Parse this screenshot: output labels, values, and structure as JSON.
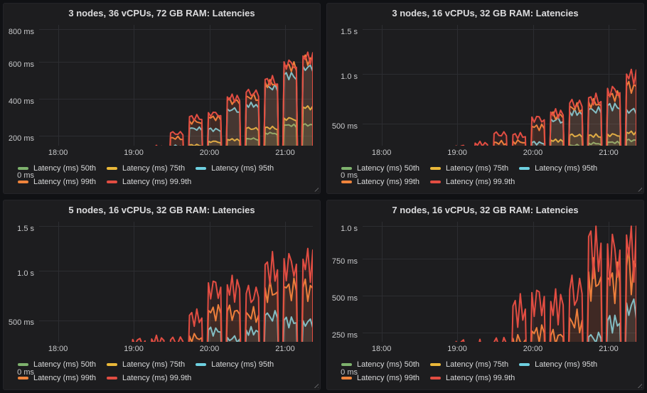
{
  "theme": {
    "page_bg": "#101114",
    "panel_bg": "#1d1d1f",
    "grid_color": "#2c2d31",
    "title_color": "#dcdcde",
    "axis_text_color": "#c8c9cb",
    "legend_text_color": "#d8d9da"
  },
  "legend": {
    "position": "bottom-left",
    "items": [
      {
        "label": "Latency (ms) 50th",
        "color": "#7EB26D"
      },
      {
        "label": "Latency (ms) 75th",
        "color": "#EAB839"
      },
      {
        "label": "Latency (ms) 95th",
        "color": "#6ED0E0"
      },
      {
        "label": "Latency (ms) 99th",
        "color": "#EF843C"
      },
      {
        "label": "Latency (ms) 99.9th",
        "color": "#E24D42"
      }
    ]
  },
  "chart_data": [
    {
      "type": "area",
      "title": "3 nodes, 36 vCPUs, 72 GB RAM: Latencies",
      "xlabel": "",
      "ylabel": "",
      "y_unit": "ms",
      "y_max": 800,
      "y_ticks": [
        {
          "v": 0,
          "label": "0 ms"
        },
        {
          "v": 200,
          "label": "200 ms"
        },
        {
          "v": 400,
          "label": "400 ms"
        },
        {
          "v": 600,
          "label": "600 ms"
        },
        {
          "v": 800,
          "label": "800 ms"
        }
      ],
      "x_note": "x values are minutes after 17:40",
      "x_range": [
        5,
        222
      ],
      "x_ticks": [
        {
          "t": 20,
          "label": "18:00"
        },
        {
          "t": 80,
          "label": "19:00"
        },
        {
          "t": 140,
          "label": "20:00"
        },
        {
          "t": 200,
          "label": "21:00"
        }
      ],
      "grid": true,
      "legend_position": "bottom-left",
      "series_order": [
        "50th",
        "75th",
        "95th",
        "99th",
        "99.9th"
      ],
      "wobble": 0.04,
      "bursts": [
        {
          "t0": 6,
          "t1": 16,
          "values": [
            2,
            3,
            6,
            9,
            11
          ]
        },
        {
          "t0": 18,
          "t1": 30,
          "values": [
            14,
            18,
            24,
            28,
            33
          ]
        },
        {
          "t0": 33,
          "t1": 45,
          "values": [
            16,
            20,
            27,
            32,
            38
          ]
        },
        {
          "t0": 48,
          "t1": 60,
          "values": [
            16,
            21,
            28,
            33,
            38
          ]
        },
        {
          "t0": 63,
          "t1": 75,
          "values": [
            20,
            25,
            33,
            41,
            48
          ]
        },
        {
          "t0": 78,
          "t1": 90,
          "values": [
            38,
            55,
            88,
            108,
            117
          ]
        },
        {
          "t0": 93,
          "t1": 105,
          "values": [
            42,
            60,
            100,
            128,
            142
          ]
        },
        {
          "t0": 108,
          "t1": 120,
          "values": [
            60,
            90,
            145,
            190,
            215
          ]
        },
        {
          "t0": 123,
          "t1": 135,
          "values": [
            105,
            150,
            240,
            280,
            303
          ]
        },
        {
          "t0": 138,
          "t1": 150,
          "values": [
            100,
            170,
            235,
            300,
            325
          ]
        },
        {
          "t0": 153,
          "t1": 165,
          "values": [
            130,
            180,
            345,
            390,
            410
          ]
        },
        {
          "t0": 168,
          "t1": 180,
          "values": [
            185,
            240,
            370,
            415,
            435
          ]
        },
        {
          "t0": 183,
          "t1": 195,
          "values": [
            215,
            245,
            465,
            490,
            505
          ]
        },
        {
          "t0": 198,
          "t1": 210,
          "values": [
            258,
            295,
            530,
            580,
            600
          ]
        },
        {
          "t0": 213,
          "t1": 225,
          "values": [
            260,
            355,
            575,
            615,
            632
          ]
        }
      ]
    },
    {
      "type": "area",
      "title": "3 nodes, 16 vCPUs, 32 GB RAM: Latencies",
      "xlabel": "",
      "ylabel": "",
      "y_unit": "ms",
      "y_max": 1500,
      "y_ticks": [
        {
          "v": 0,
          "label": "0 ms"
        },
        {
          "v": 500,
          "label": "500 ms"
        },
        {
          "v": 1000,
          "label": "1.0 s"
        },
        {
          "v": 1500,
          "label": "1.5 s"
        }
      ],
      "x_note": "x values are minutes after 17:40",
      "x_range": [
        5,
        222
      ],
      "x_ticks": [
        {
          "t": 20,
          "label": "18:00"
        },
        {
          "t": 80,
          "label": "19:00"
        },
        {
          "t": 140,
          "label": "20:00"
        },
        {
          "t": 200,
          "label": "21:00"
        }
      ],
      "grid": true,
      "legend_position": "bottom-left",
      "series_order": [
        "50th",
        "75th",
        "95th",
        "99th",
        "99.9th"
      ],
      "wobble": 0.06,
      "bursts": [
        {
          "t0": 6,
          "t1": 16,
          "values": [
            3,
            5,
            8,
            12,
            15
          ]
        },
        {
          "t0": 18,
          "t1": 30,
          "values": [
            15,
            20,
            28,
            35,
            40
          ]
        },
        {
          "t0": 33,
          "t1": 45,
          "values": [
            16,
            22,
            30,
            38,
            45
          ]
        },
        {
          "t0": 48,
          "t1": 60,
          "values": [
            16,
            22,
            30,
            38,
            45
          ]
        },
        {
          "t0": 63,
          "t1": 75,
          "values": [
            20,
            28,
            38,
            48,
            58
          ]
        },
        {
          "t0": 78,
          "t1": 90,
          "values": [
            140,
            165,
            190,
            225,
            272
          ]
        },
        {
          "t0": 93,
          "t1": 105,
          "values": [
            150,
            175,
            205,
            245,
            300
          ]
        },
        {
          "t0": 108,
          "t1": 120,
          "values": [
            175,
            205,
            250,
            310,
            395
          ]
        },
        {
          "t0": 123,
          "t1": 135,
          "values": [
            180,
            200,
            255,
            320,
            385
          ]
        },
        {
          "t0": 138,
          "t1": 150,
          "values": [
            160,
            235,
            305,
            470,
            565
          ]
        },
        {
          "t0": 153,
          "t1": 165,
          "values": [
            260,
            330,
            545,
            585,
            615
          ]
        },
        {
          "t0": 168,
          "t1": 180,
          "values": [
            280,
            380,
            620,
            675,
            705
          ]
        },
        {
          "t0": 183,
          "t1": 195,
          "values": [
            300,
            380,
            640,
            720,
            760
          ]
        },
        {
          "t0": 198,
          "t1": 210,
          "values": [
            310,
            390,
            680,
            790,
            855
          ]
        },
        {
          "t0": 213,
          "t1": 225,
          "values": [
            330,
            410,
            640,
            880,
            1000
          ]
        }
      ]
    },
    {
      "type": "area",
      "title": "5 nodes, 16 vCPUs, 32 GB RAM: Latencies",
      "xlabel": "",
      "ylabel": "",
      "y_unit": "ms",
      "y_max": 1500,
      "y_ticks": [
        {
          "v": 0,
          "label": "0 ms"
        },
        {
          "v": 500,
          "label": "500 ms"
        },
        {
          "v": 1000,
          "label": "1.0 s"
        },
        {
          "v": 1500,
          "label": "1.5 s"
        }
      ],
      "x_note": "x values are minutes after 17:40",
      "x_range": [
        5,
        222
      ],
      "x_ticks": [
        {
          "t": 20,
          "label": "18:00"
        },
        {
          "t": 80,
          "label": "19:00"
        },
        {
          "t": 140,
          "label": "20:00"
        },
        {
          "t": 200,
          "label": "21:00"
        }
      ],
      "grid": true,
      "legend_position": "bottom-left",
      "series_order": [
        "50th",
        "75th",
        "95th",
        "99th",
        "99.9th"
      ],
      "wobble": 0.12,
      "bursts": [
        {
          "t0": 6,
          "t1": 16,
          "values": [
            2,
            4,
            8,
            14,
            18
          ]
        },
        {
          "t0": 18,
          "t1": 30,
          "values": [
            4,
            8,
            12,
            20,
            26
          ]
        },
        {
          "t0": 33,
          "t1": 45,
          "values": [
            4,
            8,
            12,
            20,
            26
          ]
        },
        {
          "t0": 48,
          "t1": 60,
          "values": [
            4,
            8,
            12,
            20,
            26
          ]
        },
        {
          "t0": 63,
          "t1": 75,
          "values": [
            5,
            10,
            15,
            24,
            30
          ]
        },
        {
          "t0": 78,
          "t1": 90,
          "values": [
            15,
            40,
            90,
            215,
            305
          ]
        },
        {
          "t0": 93,
          "t1": 105,
          "values": [
            15,
            42,
            95,
            205,
            310
          ]
        },
        {
          "t0": 108,
          "t1": 120,
          "values": [
            15,
            40,
            90,
            190,
            300
          ]
        },
        {
          "t0": 123,
          "t1": 135,
          "values": [
            15,
            55,
            190,
            340,
            550
          ]
        },
        {
          "t0": 138,
          "t1": 150,
          "values": [
            20,
            125,
            400,
            600,
            880
          ]
        },
        {
          "t0": 153,
          "t1": 165,
          "values": [
            20,
            125,
            325,
            590,
            860
          ]
        },
        {
          "t0": 168,
          "t1": 180,
          "values": [
            20,
            155,
            400,
            580,
            770
          ]
        },
        {
          "t0": 183,
          "t1": 195,
          "values": [
            25,
            155,
            550,
            830,
            1065
          ]
        },
        {
          "t0": 198,
          "t1": 210,
          "values": [
            25,
            185,
            500,
            840,
            1125
          ]
        },
        {
          "t0": 213,
          "t1": 225,
          "values": [
            30,
            185,
            495,
            830,
            1120
          ]
        }
      ]
    },
    {
      "type": "area",
      "title": "7 nodes, 16 vCPUs, 32 GB RAM: Latencies",
      "xlabel": "",
      "ylabel": "",
      "y_unit": "ms",
      "y_max": 1000,
      "y_ticks": [
        {
          "v": 0,
          "label": "0 ms"
        },
        {
          "v": 250,
          "label": "250 ms"
        },
        {
          "v": 500,
          "label": "500 ms"
        },
        {
          "v": 750,
          "label": "750 ms"
        },
        {
          "v": 1000,
          "label": "1.0 s"
        }
      ],
      "x_note": "x values are minutes after 17:40",
      "x_range": [
        5,
        222
      ],
      "x_ticks": [
        {
          "t": 20,
          "label": "18:00"
        },
        {
          "t": 80,
          "label": "19:00"
        },
        {
          "t": 140,
          "label": "20:00"
        },
        {
          "t": 200,
          "label": "21:00"
        }
      ],
      "grid": true,
      "legend_position": "bottom-left",
      "series_order": [
        "50th",
        "75th",
        "95th",
        "99th",
        "99.9th"
      ],
      "wobble": 0.2,
      "bursts": [
        {
          "t0": 6,
          "t1": 16,
          "values": [
            2,
            3,
            6,
            10,
            14
          ]
        },
        {
          "t0": 18,
          "t1": 30,
          "values": [
            4,
            8,
            14,
            22,
            30
          ]
        },
        {
          "t0": 33,
          "t1": 45,
          "values": [
            4,
            8,
            14,
            22,
            30
          ]
        },
        {
          "t0": 48,
          "t1": 60,
          "values": [
            4,
            8,
            14,
            22,
            30
          ]
        },
        {
          "t0": 63,
          "t1": 75,
          "values": [
            5,
            9,
            15,
            24,
            32
          ]
        },
        {
          "t0": 78,
          "t1": 90,
          "values": [
            8,
            15,
            25,
            80,
            190
          ]
        },
        {
          "t0": 93,
          "t1": 105,
          "values": [
            8,
            15,
            25,
            75,
            170
          ]
        },
        {
          "t0": 108,
          "t1": 120,
          "values": [
            8,
            15,
            25,
            70,
            185
          ]
        },
        {
          "t0": 123,
          "t1": 135,
          "values": [
            12,
            20,
            60,
            210,
            430
          ]
        },
        {
          "t0": 138,
          "t1": 150,
          "values": [
            12,
            25,
            70,
            260,
            520
          ]
        },
        {
          "t0": 153,
          "t1": 165,
          "values": [
            10,
            20,
            70,
            230,
            460
          ]
        },
        {
          "t0": 168,
          "t1": 180,
          "values": [
            10,
            20,
            95,
            350,
            540
          ]
        },
        {
          "t0": 183,
          "t1": 195,
          "values": [
            12,
            30,
            220,
            660,
            900
          ]
        },
        {
          "t0": 198,
          "t1": 210,
          "values": [
            12,
            25,
            330,
            620,
            850
          ]
        },
        {
          "t0": 213,
          "t1": 225,
          "values": [
            15,
            90,
            450,
            700,
            910
          ]
        }
      ]
    }
  ]
}
